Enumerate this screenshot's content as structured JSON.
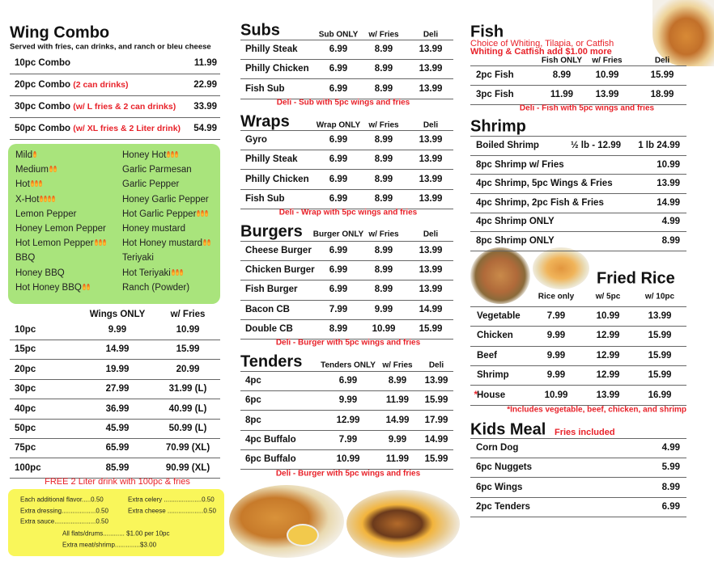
{
  "wing_combo": {
    "title": "Wing Combo",
    "subtitle": "Served with fries, can drinks, and ranch or bleu cheese",
    "items": [
      {
        "name": "10pc Combo",
        "price": "11.99"
      },
      {
        "name": "20pc Combo",
        "note": "(2 can drinks)",
        "price": "22.99"
      },
      {
        "name": "30pc Combo",
        "note": "(w/ L fries & 2 can drinks)",
        "price": "33.99"
      },
      {
        "name": "50pc Combo",
        "note": "(w/ XL fries & 2 Liter drink)",
        "price": "54.99"
      }
    ]
  },
  "flavors": {
    "left": [
      {
        "name": "Mild",
        "heat": 1
      },
      {
        "name": "Medium",
        "heat": 2
      },
      {
        "name": "Hot",
        "heat": 3
      },
      {
        "name": "X-Hot",
        "heat": 4
      },
      {
        "name": "Lemon Pepper"
      },
      {
        "name": "Honey Lemon Pepper"
      },
      {
        "name": "Hot Lemon Pepper",
        "heat": 3
      },
      {
        "name": "BBQ"
      },
      {
        "name": "Honey BBQ"
      },
      {
        "name": "Hot Honey BBQ",
        "heat": 2
      }
    ],
    "right": [
      {
        "name": "Honey Hot",
        "heat": 3
      },
      {
        "name": "Garlic Parmesan"
      },
      {
        "name": "Garlic Pepper"
      },
      {
        "name": "Honey Garlic Pepper"
      },
      {
        "name": "Hot Garlic Pepper",
        "heat": 3
      },
      {
        "name": "Honey mustard"
      },
      {
        "name": "Hot Honey mustard",
        "heat": 2
      },
      {
        "name": "Teriyaki"
      },
      {
        "name": "Hot Teriyaki",
        "heat": 3
      },
      {
        "name": "Ranch (Powder)"
      }
    ]
  },
  "wings": {
    "headers": [
      "Wings ONLY",
      "w/ Fries"
    ],
    "rows": [
      [
        "10pc",
        "9.99",
        "10.99"
      ],
      [
        "15pc",
        "14.99",
        "15.99"
      ],
      [
        "20pc",
        "19.99",
        "20.99"
      ],
      [
        "30pc",
        "27.99",
        "31.99 (L)"
      ],
      [
        "40pc",
        "36.99",
        "40.99 (L)"
      ],
      [
        "50pc",
        "45.99",
        "50.99 (L)"
      ],
      [
        "75pc",
        "65.99",
        "70.99 (XL)"
      ],
      [
        "100pc",
        "85.99",
        "90.99 (XL)"
      ]
    ],
    "note": "FREE 2 Liter drink with 100pc & fries"
  },
  "extras": {
    "left": [
      "Each additional flavor.....0.50",
      "Extra dressing...................0.50",
      "Extra sauce.......................0.50"
    ],
    "right": [
      "Extra celery .....................0.50",
      "Extra cheese ....................0.50"
    ],
    "bottom": [
      "All flats/drums............ $1.00 per 10pc",
      "Extra meat/shrimp..............$3.00"
    ]
  },
  "subs": {
    "title": "Subs",
    "headers": [
      "Sub ONLY",
      "w/ Fries",
      "Deli"
    ],
    "rows": [
      [
        "Philly Steak",
        "6.99",
        "8.99",
        "13.99"
      ],
      [
        "Philly Chicken",
        "6.99",
        "8.99",
        "13.99"
      ],
      [
        "Fish Sub",
        "6.99",
        "8.99",
        "13.99"
      ]
    ],
    "note": "Deli - Sub with 5pc wings and fries"
  },
  "wraps": {
    "title": "Wraps",
    "headers": [
      "Wrap ONLY",
      "w/ Fries",
      "Deli"
    ],
    "rows": [
      [
        "Gyro",
        "6.99",
        "8.99",
        "13.99"
      ],
      [
        "Philly Steak",
        "6.99",
        "8.99",
        "13.99"
      ],
      [
        "Philly Chicken",
        "6.99",
        "8.99",
        "13.99"
      ],
      [
        "Fish Sub",
        "6.99",
        "8.99",
        "13.99"
      ]
    ],
    "note": "Deli - Wrap with 5pc wings and fries"
  },
  "burgers": {
    "title": "Burgers",
    "headers": [
      "Burger ONLY",
      "w/ Fries",
      "Deli"
    ],
    "rows": [
      [
        "Cheese Burger",
        "6.99",
        "8.99",
        "13.99"
      ],
      [
        "Chicken Burger",
        "6.99",
        "8.99",
        "13.99"
      ],
      [
        "Fish Burger",
        "6.99",
        "8.99",
        "13.99"
      ],
      [
        "Bacon CB",
        "7.99",
        "9.99",
        "14.99"
      ],
      [
        "Double CB",
        "8.99",
        "10.99",
        "15.99"
      ]
    ],
    "note": "Deli - Burger with 5pc wings and fries"
  },
  "tenders": {
    "title": "Tenders",
    "headers": [
      "Tenders ONLY",
      "w/ Fries",
      "Deli"
    ],
    "rows": [
      [
        "4pc",
        "6.99",
        "8.99",
        "13.99"
      ],
      [
        "6pc",
        "9.99",
        "11.99",
        "15.99"
      ],
      [
        "8pc",
        "12.99",
        "14.99",
        "17.99"
      ],
      [
        "4pc Buffalo",
        "7.99",
        "9.99",
        "14.99"
      ],
      [
        "6pc Buffalo",
        "10.99",
        "11.99",
        "15.99"
      ]
    ],
    "note": "Deli - Burger with 5pc wings and fries"
  },
  "fish": {
    "title": "Fish",
    "subtitle": "Choice of Whiting, Tilapia, or Catfish",
    "surcharge": "Whiting & Catfish add $1.00 more",
    "headers": [
      "Fish ONLY",
      "w/ Fries",
      "Deli"
    ],
    "rows": [
      [
        "2pc Fish",
        "8.99",
        "10.99",
        "15.99"
      ],
      [
        "3pc Fish",
        "11.99",
        "13.99",
        "18.99"
      ]
    ],
    "note": "Deli - Fish with 5pc wings and fries"
  },
  "shrimp": {
    "title": "Shrimp",
    "rows": [
      [
        "Boiled Shrimp",
        "½ lb - 12.99",
        "1 lb 24.99"
      ],
      [
        "8pc Shrimp w/ Fries",
        "10.99"
      ],
      [
        "4pc Shrimp, 5pc Wings & Fries",
        "13.99"
      ],
      [
        "4pc Shrimp, 2pc Fish & Fries",
        "14.99"
      ],
      [
        "4pc Shrimp ONLY",
        "4.99"
      ],
      [
        "8pc Shrimp ONLY",
        "8.99"
      ]
    ]
  },
  "fried_rice": {
    "title": "Fried Rice",
    "headers": [
      "Rice only",
      "w/ 5pc",
      "w/ 10pc"
    ],
    "rows": [
      [
        "Vegetable",
        "7.99",
        "10.99",
        "13.99"
      ],
      [
        "Chicken",
        "9.99",
        "12.99",
        "15.99"
      ],
      [
        "Beef",
        "9.99",
        "12.99",
        "15.99"
      ],
      [
        "Shrimp",
        "9.99",
        "12.99",
        "15.99"
      ],
      [
        "House",
        "10.99",
        "13.99",
        "16.99"
      ]
    ],
    "star": "*",
    "note": "*Includes vegetable, beef, chicken, and shrimp"
  },
  "kids_meal": {
    "title": "Kids Meal",
    "note": "Fries included",
    "rows": [
      [
        "Corn Dog",
        "4.99"
      ],
      [
        "6pc Nuggets",
        "5.99"
      ],
      [
        "6pc Wings",
        "8.99"
      ],
      [
        "2pc Tenders",
        "6.99"
      ]
    ]
  }
}
